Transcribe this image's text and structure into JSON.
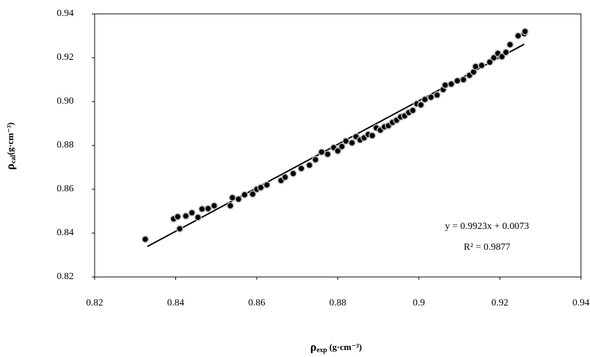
{
  "chart_data": {
    "type": "scatter",
    "xlabel": {
      "symbol": "ρ",
      "subscript": "exp",
      "unit": " (g·cm⁻³)"
    },
    "ylabel": {
      "symbol": "ρ",
      "subscript": "cal",
      "unit": "(g·cm⁻³)"
    },
    "xlim": [
      0.82,
      0.94
    ],
    "ylim": [
      0.82,
      0.94
    ],
    "xticks": [
      0.82,
      0.84,
      0.86,
      0.88,
      0.9,
      0.92,
      0.94
    ],
    "yticks": [
      {
        "value": 0.82,
        "label": "0.82"
      },
      {
        "value": 0.84,
        "label": "0.84"
      },
      {
        "value": 0.86,
        "label": "0.86"
      },
      {
        "value": 0.88,
        "label": "0.88"
      },
      {
        "value": 0.9,
        "label": "0.90"
      },
      {
        "value": 0.92,
        "label": "0.92"
      },
      {
        "value": 0.94,
        "label": "0.94"
      }
    ],
    "series": [
      {
        "color": "#000000",
        "x": [
          0.8325,
          0.8395,
          0.8405,
          0.841,
          0.8425,
          0.844,
          0.8455,
          0.8465,
          0.848,
          0.8495,
          0.8535,
          0.854,
          0.8555,
          0.857,
          0.859,
          0.86,
          0.861,
          0.8625,
          0.866,
          0.867,
          0.869,
          0.871,
          0.873,
          0.8745,
          0.876,
          0.8775,
          0.879,
          0.88,
          0.881,
          0.882,
          0.8835,
          0.8845,
          0.8855,
          0.8865,
          0.8875,
          0.8885,
          0.8895,
          0.8905,
          0.8915,
          0.8925,
          0.8935,
          0.8945,
          0.8955,
          0.8965,
          0.8975,
          0.8985,
          0.8995,
          0.9005,
          0.9015,
          0.903,
          0.9045,
          0.906,
          0.9065,
          0.908,
          0.9095,
          0.911,
          0.9125,
          0.9135,
          0.914,
          0.9155,
          0.9175,
          0.9185,
          0.9195,
          0.9205,
          0.9215,
          0.9225,
          0.9245,
          0.926,
          0.9262
        ],
        "values": [
          0.8372,
          0.8465,
          0.8475,
          0.842,
          0.8478,
          0.8493,
          0.8472,
          0.851,
          0.8512,
          0.8525,
          0.8525,
          0.8562,
          0.8555,
          0.8575,
          0.8578,
          0.86,
          0.8608,
          0.862,
          0.864,
          0.8655,
          0.8672,
          0.8695,
          0.871,
          0.8735,
          0.877,
          0.876,
          0.879,
          0.8775,
          0.8795,
          0.882,
          0.8812,
          0.884,
          0.8825,
          0.8835,
          0.885,
          0.8845,
          0.888,
          0.887,
          0.8885,
          0.889,
          0.8905,
          0.8915,
          0.893,
          0.8935,
          0.895,
          0.896,
          0.899,
          0.8985,
          0.901,
          0.902,
          0.903,
          0.9055,
          0.9075,
          0.908,
          0.9095,
          0.91,
          0.912,
          0.9135,
          0.916,
          0.9165,
          0.918,
          0.92,
          0.922,
          0.9205,
          0.9225,
          0.926,
          0.93,
          0.931,
          0.932
        ]
      }
    ],
    "trendline": {
      "slope": 0.9923,
      "intercept": 0.0073,
      "xrange": [
        0.833,
        0.926
      ],
      "color": "#000000",
      "label": "y = 0.9923x + 0.0073",
      "r2_label": "R² = 0.9877"
    }
  }
}
